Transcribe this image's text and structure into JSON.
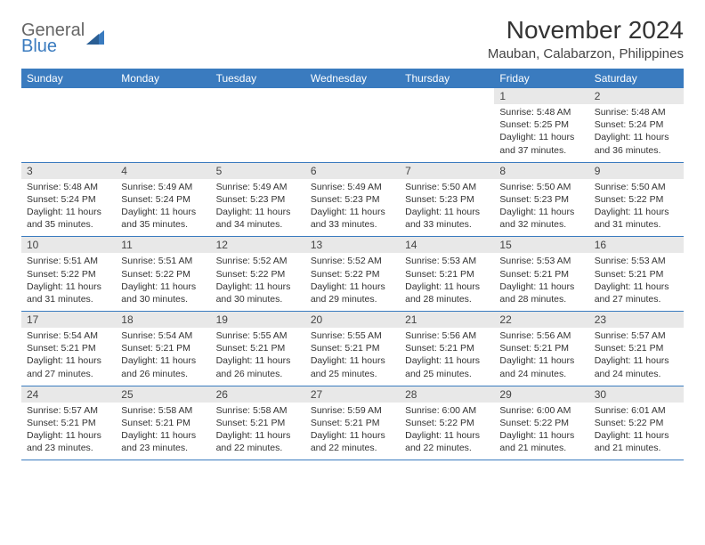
{
  "colors": {
    "header_bg": "#3a7bbf",
    "header_text": "#ffffff",
    "daynum_bg": "#e8e8e8",
    "row_divider": "#3a7bbf",
    "page_bg": "#ffffff",
    "body_text": "#333333",
    "logo_gray": "#666666",
    "logo_blue": "#3a7bbf"
  },
  "typography": {
    "title_size_pt": 28,
    "location_size_pt": 15,
    "header_cell_size_pt": 12,
    "daynum_size_pt": 12,
    "body_size_pt": 10.5
  },
  "logo": {
    "line1": "General",
    "line2": "Blue",
    "icon": "sail-triangle"
  },
  "title": "November 2024",
  "location": "Mauban, Calabarzon, Philippines",
  "day_headers": [
    "Sunday",
    "Monday",
    "Tuesday",
    "Wednesday",
    "Thursday",
    "Friday",
    "Saturday"
  ],
  "weeks": [
    [
      {
        "empty": true
      },
      {
        "empty": true
      },
      {
        "empty": true
      },
      {
        "empty": true
      },
      {
        "empty": true
      },
      {
        "num": "1",
        "sunrise": "Sunrise: 5:48 AM",
        "sunset": "Sunset: 5:25 PM",
        "daylight": "Daylight: 11 hours and 37 minutes."
      },
      {
        "num": "2",
        "sunrise": "Sunrise: 5:48 AM",
        "sunset": "Sunset: 5:24 PM",
        "daylight": "Daylight: 11 hours and 36 minutes."
      }
    ],
    [
      {
        "num": "3",
        "sunrise": "Sunrise: 5:48 AM",
        "sunset": "Sunset: 5:24 PM",
        "daylight": "Daylight: 11 hours and 35 minutes."
      },
      {
        "num": "4",
        "sunrise": "Sunrise: 5:49 AM",
        "sunset": "Sunset: 5:24 PM",
        "daylight": "Daylight: 11 hours and 35 minutes."
      },
      {
        "num": "5",
        "sunrise": "Sunrise: 5:49 AM",
        "sunset": "Sunset: 5:23 PM",
        "daylight": "Daylight: 11 hours and 34 minutes."
      },
      {
        "num": "6",
        "sunrise": "Sunrise: 5:49 AM",
        "sunset": "Sunset: 5:23 PM",
        "daylight": "Daylight: 11 hours and 33 minutes."
      },
      {
        "num": "7",
        "sunrise": "Sunrise: 5:50 AM",
        "sunset": "Sunset: 5:23 PM",
        "daylight": "Daylight: 11 hours and 33 minutes."
      },
      {
        "num": "8",
        "sunrise": "Sunrise: 5:50 AM",
        "sunset": "Sunset: 5:23 PM",
        "daylight": "Daylight: 11 hours and 32 minutes."
      },
      {
        "num": "9",
        "sunrise": "Sunrise: 5:50 AM",
        "sunset": "Sunset: 5:22 PM",
        "daylight": "Daylight: 11 hours and 31 minutes."
      }
    ],
    [
      {
        "num": "10",
        "sunrise": "Sunrise: 5:51 AM",
        "sunset": "Sunset: 5:22 PM",
        "daylight": "Daylight: 11 hours and 31 minutes."
      },
      {
        "num": "11",
        "sunrise": "Sunrise: 5:51 AM",
        "sunset": "Sunset: 5:22 PM",
        "daylight": "Daylight: 11 hours and 30 minutes."
      },
      {
        "num": "12",
        "sunrise": "Sunrise: 5:52 AM",
        "sunset": "Sunset: 5:22 PM",
        "daylight": "Daylight: 11 hours and 30 minutes."
      },
      {
        "num": "13",
        "sunrise": "Sunrise: 5:52 AM",
        "sunset": "Sunset: 5:22 PM",
        "daylight": "Daylight: 11 hours and 29 minutes."
      },
      {
        "num": "14",
        "sunrise": "Sunrise: 5:53 AM",
        "sunset": "Sunset: 5:21 PM",
        "daylight": "Daylight: 11 hours and 28 minutes."
      },
      {
        "num": "15",
        "sunrise": "Sunrise: 5:53 AM",
        "sunset": "Sunset: 5:21 PM",
        "daylight": "Daylight: 11 hours and 28 minutes."
      },
      {
        "num": "16",
        "sunrise": "Sunrise: 5:53 AM",
        "sunset": "Sunset: 5:21 PM",
        "daylight": "Daylight: 11 hours and 27 minutes."
      }
    ],
    [
      {
        "num": "17",
        "sunrise": "Sunrise: 5:54 AM",
        "sunset": "Sunset: 5:21 PM",
        "daylight": "Daylight: 11 hours and 27 minutes."
      },
      {
        "num": "18",
        "sunrise": "Sunrise: 5:54 AM",
        "sunset": "Sunset: 5:21 PM",
        "daylight": "Daylight: 11 hours and 26 minutes."
      },
      {
        "num": "19",
        "sunrise": "Sunrise: 5:55 AM",
        "sunset": "Sunset: 5:21 PM",
        "daylight": "Daylight: 11 hours and 26 minutes."
      },
      {
        "num": "20",
        "sunrise": "Sunrise: 5:55 AM",
        "sunset": "Sunset: 5:21 PM",
        "daylight": "Daylight: 11 hours and 25 minutes."
      },
      {
        "num": "21",
        "sunrise": "Sunrise: 5:56 AM",
        "sunset": "Sunset: 5:21 PM",
        "daylight": "Daylight: 11 hours and 25 minutes."
      },
      {
        "num": "22",
        "sunrise": "Sunrise: 5:56 AM",
        "sunset": "Sunset: 5:21 PM",
        "daylight": "Daylight: 11 hours and 24 minutes."
      },
      {
        "num": "23",
        "sunrise": "Sunrise: 5:57 AM",
        "sunset": "Sunset: 5:21 PM",
        "daylight": "Daylight: 11 hours and 24 minutes."
      }
    ],
    [
      {
        "num": "24",
        "sunrise": "Sunrise: 5:57 AM",
        "sunset": "Sunset: 5:21 PM",
        "daylight": "Daylight: 11 hours and 23 minutes."
      },
      {
        "num": "25",
        "sunrise": "Sunrise: 5:58 AM",
        "sunset": "Sunset: 5:21 PM",
        "daylight": "Daylight: 11 hours and 23 minutes."
      },
      {
        "num": "26",
        "sunrise": "Sunrise: 5:58 AM",
        "sunset": "Sunset: 5:21 PM",
        "daylight": "Daylight: 11 hours and 22 minutes."
      },
      {
        "num": "27",
        "sunrise": "Sunrise: 5:59 AM",
        "sunset": "Sunset: 5:21 PM",
        "daylight": "Daylight: 11 hours and 22 minutes."
      },
      {
        "num": "28",
        "sunrise": "Sunrise: 6:00 AM",
        "sunset": "Sunset: 5:22 PM",
        "daylight": "Daylight: 11 hours and 22 minutes."
      },
      {
        "num": "29",
        "sunrise": "Sunrise: 6:00 AM",
        "sunset": "Sunset: 5:22 PM",
        "daylight": "Daylight: 11 hours and 21 minutes."
      },
      {
        "num": "30",
        "sunrise": "Sunrise: 6:01 AM",
        "sunset": "Sunset: 5:22 PM",
        "daylight": "Daylight: 11 hours and 21 minutes."
      }
    ]
  ]
}
